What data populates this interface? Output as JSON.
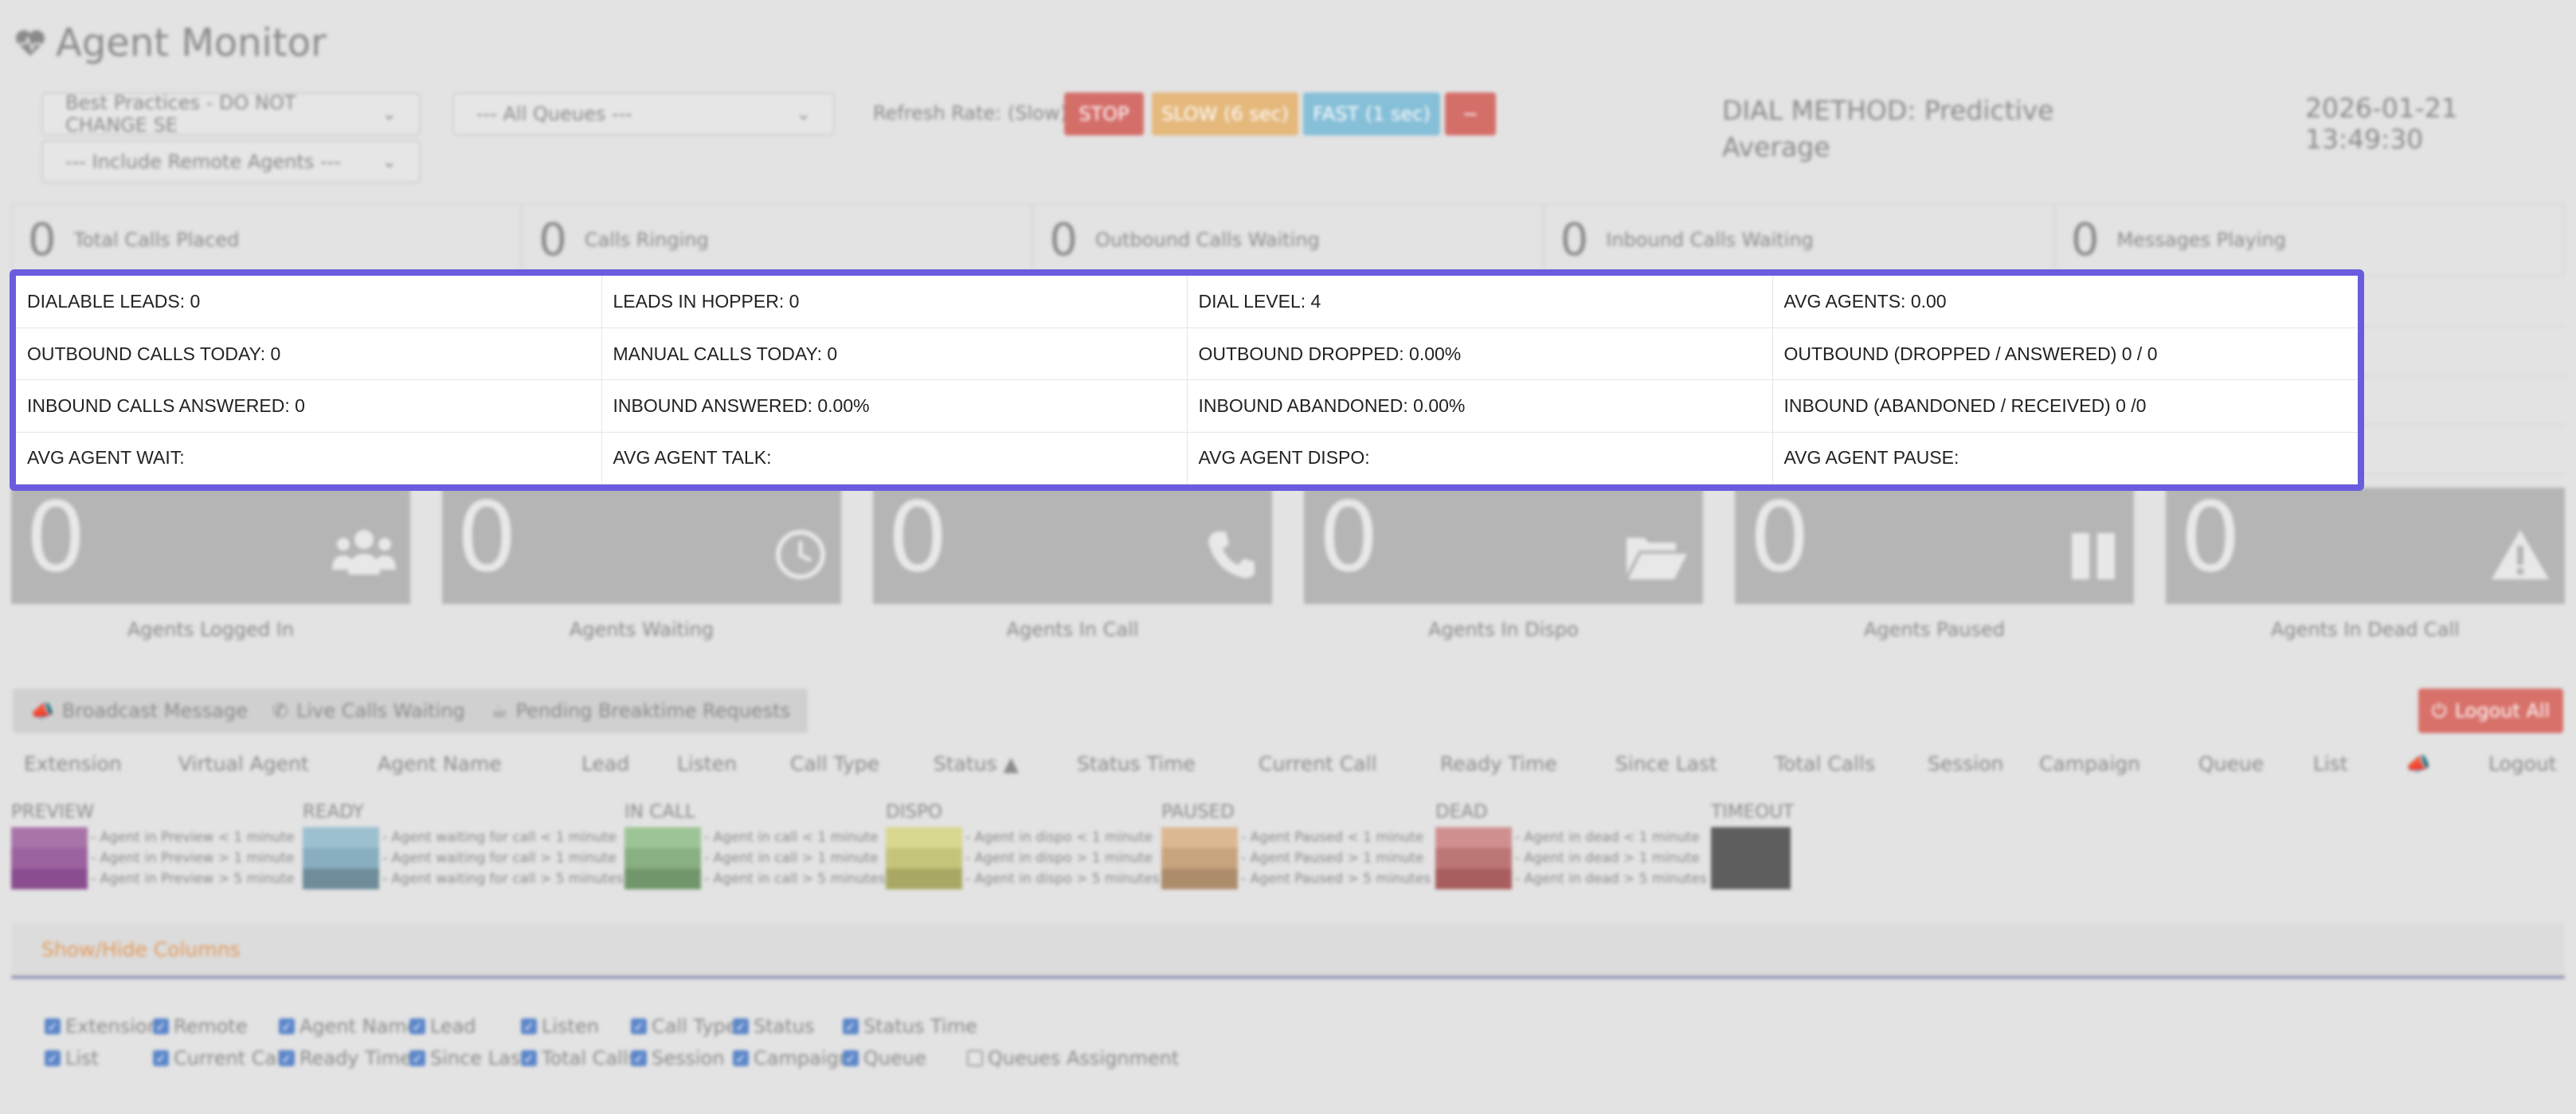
{
  "app": {
    "title": "Agent Monitor",
    "title_icon": "heartbeat-icon"
  },
  "controls": {
    "campaign_select": "Best Practices - DO NOT CHANGE SE",
    "queue_select": "--- All Queues ---",
    "remote_select": "--- Include Remote Agents ---",
    "refresh_label": "Refresh Rate: (Slow)",
    "stop_label": "STOP",
    "slow_label": "SLOW (6 sec)",
    "fast_label": "FAST (1 sec)",
    "minus_label": "−"
  },
  "dial_method": {
    "line1": "DIAL METHOD: Predictive",
    "line2": "Average"
  },
  "datetime": "2026-01-21 13:49:30",
  "stats": [
    {
      "value": "0",
      "label": "Total Calls Placed"
    },
    {
      "value": "0",
      "label": "Calls Ringing"
    },
    {
      "value": "0",
      "label": "Outbound Calls Waiting"
    },
    {
      "value": "0",
      "label": "Inbound Calls Waiting"
    },
    {
      "value": "0",
      "label": "Messages Playing"
    }
  ],
  "summary": {
    "rows": [
      [
        "DIALABLE LEADS: 0",
        "LEADS IN HOPPER: 0",
        "DIAL LEVEL: 4",
        "AVG AGENTS: 0.00"
      ],
      [
        "OUTBOUND CALLS TODAY: 0",
        "MANUAL CALLS TODAY: 0",
        "OUTBOUND DROPPED: 0.00%",
        "OUTBOUND (DROPPED / ANSWERED) 0 / 0"
      ],
      [
        "INBOUND CALLS ANSWERED: 0",
        "INBOUND ANSWERED: 0.00%",
        "INBOUND ABANDONED: 0.00%",
        "INBOUND (ABANDONED / RECEIVED) 0 /0"
      ],
      [
        "AVG AGENT WAIT:",
        "AVG AGENT TALK:",
        "AVG AGENT DISPO:",
        "AVG AGENT PAUSE:"
      ]
    ]
  },
  "tiles": [
    {
      "value": "0",
      "label": "Agents Logged In",
      "icon": "users-icon"
    },
    {
      "value": "0",
      "label": "Agents Waiting",
      "icon": "clock-icon"
    },
    {
      "value": "0",
      "label": "Agents In Call",
      "icon": "phone-icon"
    },
    {
      "value": "0",
      "label": "Agents In Dispo",
      "icon": "folder-open-icon"
    },
    {
      "value": "0",
      "label": "Agents Paused",
      "icon": "pause-icon"
    },
    {
      "value": "0",
      "label": "Agents In Dead Call",
      "icon": "warning-icon"
    }
  ],
  "actions": {
    "broadcast": "Broadcast Message",
    "live_calls": "Live Calls Waiting",
    "breaktime": "Pending Breaktime Requests",
    "logout_all": "Logout All"
  },
  "columns": [
    "Extension",
    "Virtual Agent",
    "Agent Name",
    "Lead",
    "Listen",
    "Call Type",
    "Status ▲",
    "Status Time",
    "Current Call",
    "Ready Time",
    "Since Last",
    "Total Calls",
    "Session",
    "Campaign",
    "Queue",
    "List",
    "",
    "Logout"
  ],
  "legend": [
    {
      "title": "PREVIEW",
      "colors": [
        "#a874a8",
        "#9c62a0",
        "#8a4e90"
      ],
      "lines": [
        "- Agent in Preview < 1 minute",
        "- Agent in Preview > 1 minute",
        "- Agent in Preview > 5 minute"
      ]
    },
    {
      "title": "READY",
      "colors": [
        "#9cc0d0",
        "#88aec0",
        "#6e8c99"
      ],
      "lines": [
        "- Agent waiting for call < 1 minute",
        "- Agent waiting for call > 1 minute",
        "- Agent waiting for call > 5 minutes"
      ]
    },
    {
      "title": "IN CALL",
      "colors": [
        "#9cc494",
        "#88b080",
        "#72966b"
      ],
      "lines": [
        "- Agent in call < 1 minute",
        "- Agent in call > 1 minute",
        "- Agent in call > 5 minutes"
      ]
    },
    {
      "title": "DISPO",
      "colors": [
        "#d8d890",
        "#c4c47a",
        "#a8a864"
      ],
      "lines": [
        "- Agent in dispo < 1 minute",
        "- Agent in dispo > 1 minute",
        "- Agent in dispo > 5 minutes"
      ]
    },
    {
      "title": "PAUSED",
      "colors": [
        "#dcb892",
        "#c8a47e",
        "#ad8c6c"
      ],
      "lines": [
        "- Agent Paused < 1 minute",
        "- Agent Paused > 1 minute",
        "- Agent Paused > 5 minutes"
      ]
    },
    {
      "title": "DEAD",
      "colors": [
        "#d09090",
        "#bd7676",
        "#a85e5e"
      ],
      "lines": [
        "- Agent in dead < 1 minute",
        "- Agent in dead > 1 minute",
        "- Agent in dead > 5 minutes"
      ]
    },
    {
      "title": "TIMEOUT",
      "colors": [
        "#5e5e5e"
      ],
      "lines": []
    }
  ],
  "show_hide": "Show/Hide Columns",
  "checkboxes_row1": [
    {
      "label": "Extension",
      "checked": true
    },
    {
      "label": "Remote",
      "checked": true
    },
    {
      "label": "Agent Name",
      "checked": true
    },
    {
      "label": "Lead",
      "checked": true
    },
    {
      "label": "Listen",
      "checked": true
    },
    {
      "label": "Call Type",
      "checked": true
    },
    {
      "label": "Status",
      "checked": true
    },
    {
      "label": "Status Time",
      "checked": true
    }
  ],
  "checkboxes_row2": [
    {
      "label": "List",
      "checked": true
    },
    {
      "label": "Current Call",
      "checked": true
    },
    {
      "label": "Ready Time",
      "checked": true
    },
    {
      "label": "Since Last",
      "checked": true
    },
    {
      "label": "Total Calls",
      "checked": true
    },
    {
      "label": "Session",
      "checked": true
    },
    {
      "label": "Campaign",
      "checked": true
    },
    {
      "label": "Queue",
      "checked": true
    },
    {
      "label": "Queues Assignment",
      "checked": false
    }
  ]
}
